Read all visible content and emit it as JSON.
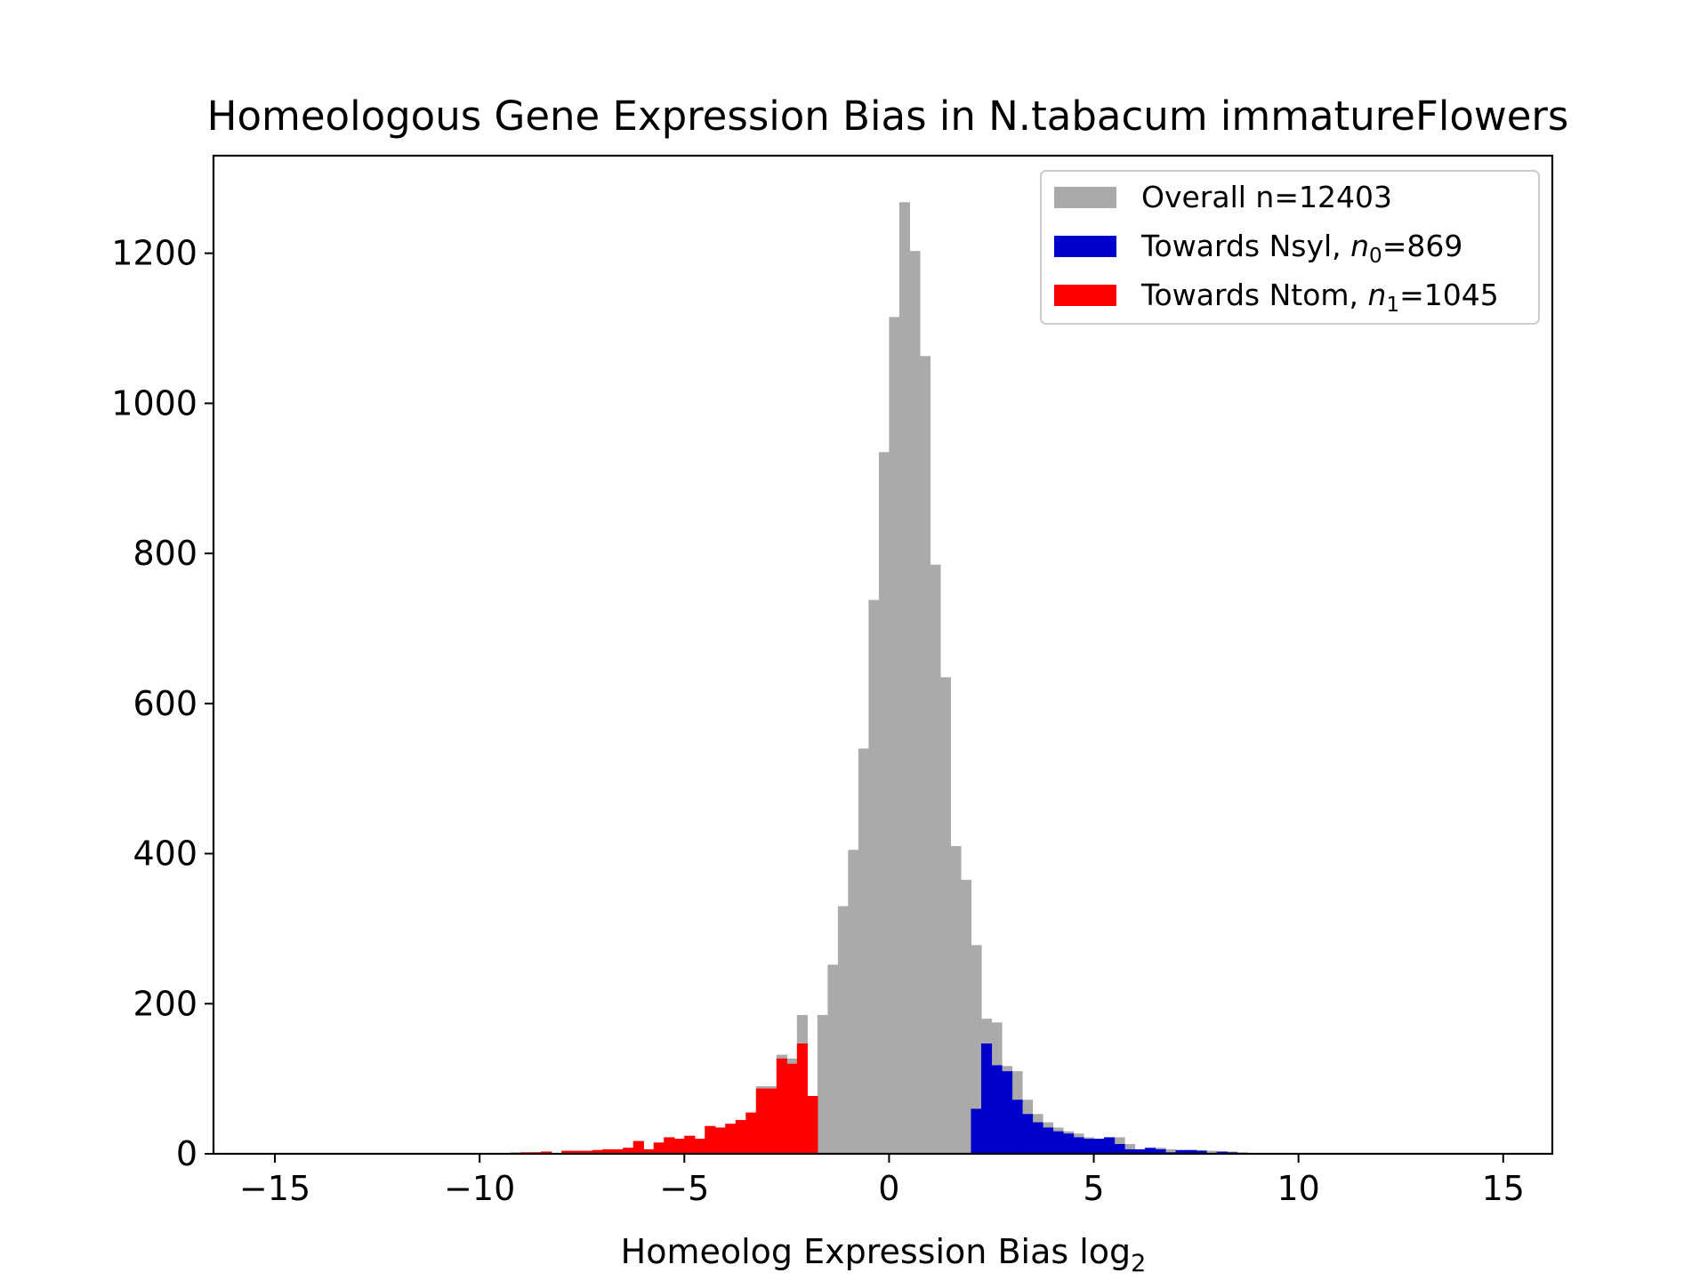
{
  "chart_data": {
    "type": "bar",
    "title": "Homeologous Gene Expression Bias in N.tabacum immatureFlowers",
    "xlabel": "Homeolog Expression Bias log",
    "xlabel_sub": "2",
    "ylabel": "",
    "xlim": [
      -16.5,
      16.2
    ],
    "ylim": [
      0,
      1330
    ],
    "xticks": [
      -15,
      -10,
      -5,
      0,
      5,
      10,
      15
    ],
    "xtick_labels": [
      "−15",
      "−10",
      "−5",
      "0",
      "5",
      "10",
      "15"
    ],
    "yticks": [
      0,
      200,
      400,
      600,
      800,
      1000,
      1200
    ],
    "ytick_labels": [
      "0",
      "200",
      "400",
      "600",
      "800",
      "1000",
      "1200"
    ],
    "grid": false,
    "legend_position": "top-right",
    "bin_width": 0.25,
    "series": [
      {
        "label_text": "Overall n=12403",
        "color": "#aaaaaa",
        "bins": [
          {
            "x": -9.25,
            "y": 2
          },
          {
            "x": -8.75,
            "y": 2
          },
          {
            "x": -8.5,
            "y": 3
          },
          {
            "x": -8.0,
            "y": 4
          },
          {
            "x": -7.75,
            "y": 4
          },
          {
            "x": -7.5,
            "y": 4
          },
          {
            "x": -7.25,
            "y": 5
          },
          {
            "x": -7.0,
            "y": 6
          },
          {
            "x": -6.75,
            "y": 6
          },
          {
            "x": -6.5,
            "y": 8
          },
          {
            "x": -6.25,
            "y": 17
          },
          {
            "x": -6.0,
            "y": 6
          },
          {
            "x": -5.75,
            "y": 15
          },
          {
            "x": -5.5,
            "y": 22
          },
          {
            "x": -5.25,
            "y": 20
          },
          {
            "x": -5.0,
            "y": 24
          },
          {
            "x": -4.75,
            "y": 20
          },
          {
            "x": -4.5,
            "y": 37
          },
          {
            "x": -4.25,
            "y": 35
          },
          {
            "x": -4.0,
            "y": 40
          },
          {
            "x": -3.75,
            "y": 45
          },
          {
            "x": -3.5,
            "y": 55
          },
          {
            "x": -3.25,
            "y": 90
          },
          {
            "x": -3.0,
            "y": 90
          },
          {
            "x": -2.75,
            "y": 132
          },
          {
            "x": -2.5,
            "y": 127
          },
          {
            "x": -2.25,
            "y": 185
          },
          {
            "x": -2.0,
            "y": 77
          },
          {
            "x": -1.75,
            "y": 185
          },
          {
            "x": -1.5,
            "y": 252
          },
          {
            "x": -1.25,
            "y": 330
          },
          {
            "x": -1.0,
            "y": 405
          },
          {
            "x": -0.75,
            "y": 540
          },
          {
            "x": -0.5,
            "y": 738
          },
          {
            "x": -0.25,
            "y": 935
          },
          {
            "x": 0.0,
            "y": 1115
          },
          {
            "x": 0.25,
            "y": 1268
          },
          {
            "x": 0.5,
            "y": 1203
          },
          {
            "x": 0.75,
            "y": 1063
          },
          {
            "x": 1.0,
            "y": 785
          },
          {
            "x": 1.25,
            "y": 635
          },
          {
            "x": 1.5,
            "y": 410
          },
          {
            "x": 1.75,
            "y": 365
          },
          {
            "x": 2.0,
            "y": 278
          },
          {
            "x": 2.25,
            "y": 180
          },
          {
            "x": 2.5,
            "y": 175
          },
          {
            "x": 2.75,
            "y": 117
          },
          {
            "x": 3.0,
            "y": 110
          },
          {
            "x": 3.25,
            "y": 72
          },
          {
            "x": 3.5,
            "y": 53
          },
          {
            "x": 3.75,
            "y": 42
          },
          {
            "x": 4.0,
            "y": 35
          },
          {
            "x": 4.25,
            "y": 30
          },
          {
            "x": 4.5,
            "y": 27
          },
          {
            "x": 4.75,
            "y": 22
          },
          {
            "x": 5.0,
            "y": 20
          },
          {
            "x": 5.25,
            "y": 20
          },
          {
            "x": 5.5,
            "y": 22
          },
          {
            "x": 5.75,
            "y": 13
          },
          {
            "x": 6.0,
            "y": 6
          },
          {
            "x": 6.25,
            "y": 6
          },
          {
            "x": 6.5,
            "y": 8
          },
          {
            "x": 6.75,
            "y": 6
          },
          {
            "x": 7.0,
            "y": 2
          },
          {
            "x": 7.25,
            "y": 5
          },
          {
            "x": 7.5,
            "y": 5
          },
          {
            "x": 7.75,
            "y": 4
          },
          {
            "x": 8.0,
            "y": 1
          },
          {
            "x": 8.25,
            "y": 3
          },
          {
            "x": 8.5,
            "y": 2
          }
        ]
      },
      {
        "label_text": "Towards Nsyl, ",
        "label_var": "n",
        "label_sub": "0",
        "label_rest": "=869",
        "color": "#0000cc",
        "bins": [
          {
            "x": 2.0,
            "y": 60
          },
          {
            "x": 2.25,
            "y": 147
          },
          {
            "x": 2.5,
            "y": 118
          },
          {
            "x": 2.75,
            "y": 110
          },
          {
            "x": 3.0,
            "y": 72
          },
          {
            "x": 3.25,
            "y": 53
          },
          {
            "x": 3.5,
            "y": 42
          },
          {
            "x": 3.75,
            "y": 35
          },
          {
            "x": 4.0,
            "y": 30
          },
          {
            "x": 4.25,
            "y": 27
          },
          {
            "x": 4.5,
            "y": 22
          },
          {
            "x": 4.75,
            "y": 20
          },
          {
            "x": 5.0,
            "y": 20
          },
          {
            "x": 5.25,
            "y": 22
          },
          {
            "x": 5.5,
            "y": 13
          },
          {
            "x": 5.75,
            "y": 6
          },
          {
            "x": 6.0,
            "y": 6
          },
          {
            "x": 6.25,
            "y": 8
          },
          {
            "x": 6.5,
            "y": 6
          },
          {
            "x": 6.75,
            "y": 2
          },
          {
            "x": 7.0,
            "y": 5
          },
          {
            "x": 7.25,
            "y": 5
          },
          {
            "x": 7.5,
            "y": 4
          },
          {
            "x": 7.75,
            "y": 1
          },
          {
            "x": 8.0,
            "y": 3
          },
          {
            "x": 8.25,
            "y": 2
          }
        ]
      },
      {
        "label_text": "Towards Ntom, ",
        "label_var": "n",
        "label_sub": "1",
        "label_rest": "=1045",
        "color": "#ff0000",
        "bins": [
          {
            "x": -9.0,
            "y": 2
          },
          {
            "x": -8.75,
            "y": 2
          },
          {
            "x": -8.5,
            "y": 3
          },
          {
            "x": -8.0,
            "y": 4
          },
          {
            "x": -7.75,
            "y": 4
          },
          {
            "x": -7.5,
            "y": 4
          },
          {
            "x": -7.25,
            "y": 5
          },
          {
            "x": -7.0,
            "y": 6
          },
          {
            "x": -6.75,
            "y": 6
          },
          {
            "x": -6.5,
            "y": 8
          },
          {
            "x": -6.25,
            "y": 17
          },
          {
            "x": -6.0,
            "y": 6
          },
          {
            "x": -5.75,
            "y": 15
          },
          {
            "x": -5.5,
            "y": 22
          },
          {
            "x": -5.25,
            "y": 20
          },
          {
            "x": -5.0,
            "y": 24
          },
          {
            "x": -4.75,
            "y": 20
          },
          {
            "x": -4.5,
            "y": 37
          },
          {
            "x": -4.25,
            "y": 35
          },
          {
            "x": -4.0,
            "y": 40
          },
          {
            "x": -3.75,
            "y": 45
          },
          {
            "x": -3.5,
            "y": 55
          },
          {
            "x": -3.25,
            "y": 87
          },
          {
            "x": -3.0,
            "y": 87
          },
          {
            "x": -2.75,
            "y": 127
          },
          {
            "x": -2.5,
            "y": 120
          },
          {
            "x": -2.25,
            "y": 147
          },
          {
            "x": -2.0,
            "y": 77
          }
        ]
      }
    ]
  }
}
